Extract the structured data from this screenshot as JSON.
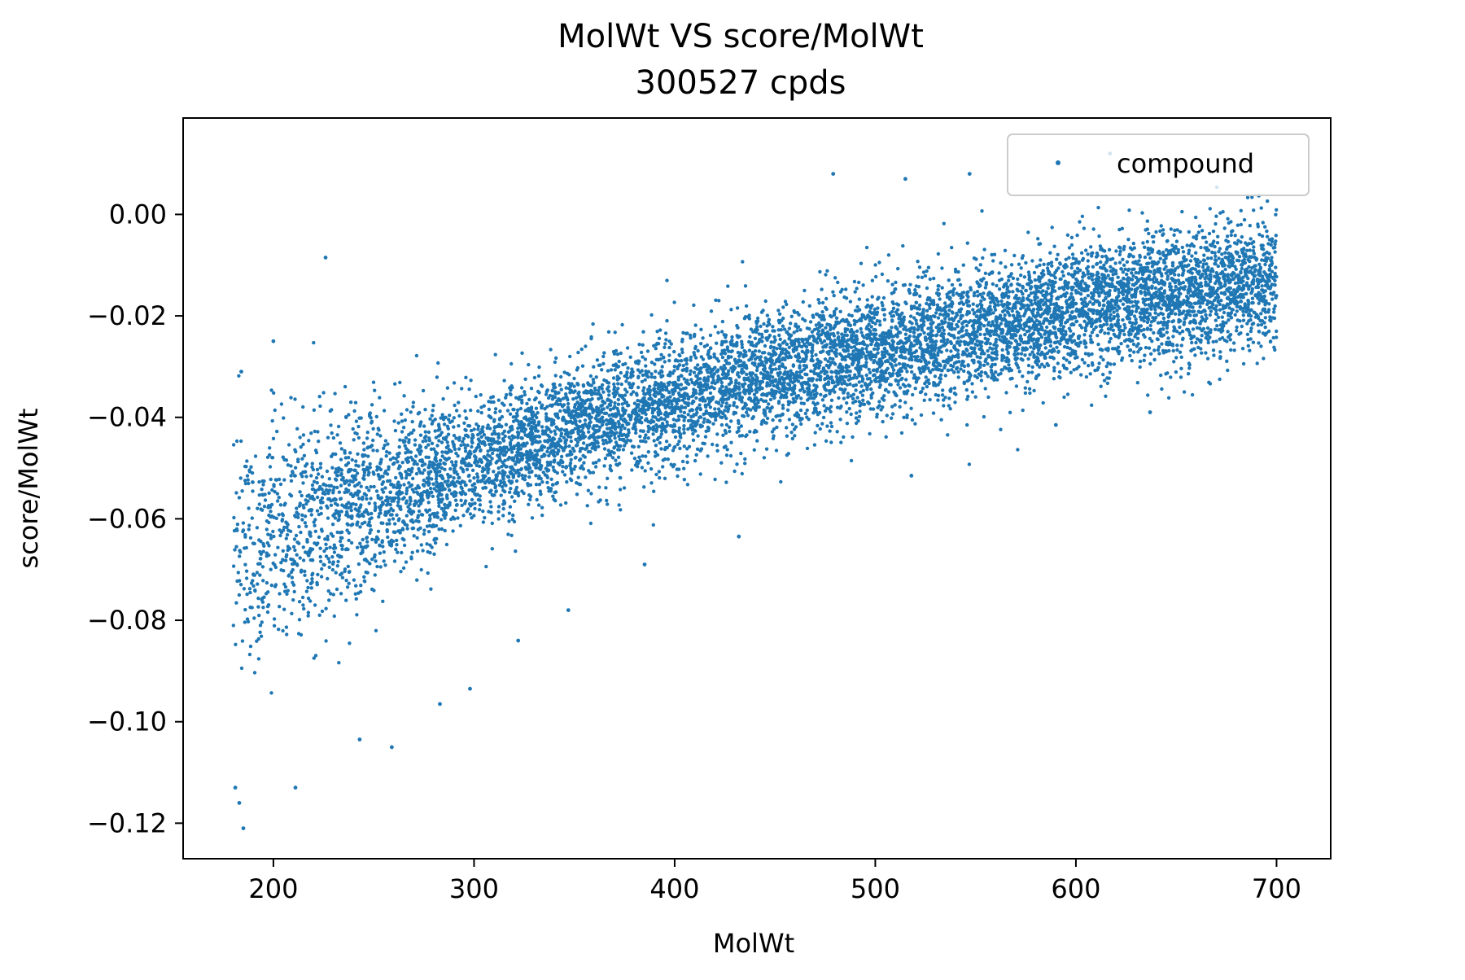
{
  "chart_data": {
    "type": "scatter",
    "title": "MolWt VS score/MolWt",
    "subtitle": "300527 cpds",
    "xlabel": "MolWt",
    "ylabel": "score/MolWt",
    "xlim": [
      155,
      727
    ],
    "ylim": [
      -0.127,
      0.019
    ],
    "xticks": [
      200,
      300,
      400,
      500,
      600,
      700
    ],
    "xtick_labels": [
      "200",
      "300",
      "400",
      "500",
      "600",
      "700"
    ],
    "yticks": [
      0.0,
      -0.02,
      -0.04,
      -0.06,
      -0.08,
      -0.1,
      -0.12
    ],
    "ytick_labels": [
      "0.00",
      "−0.02",
      "−0.04",
      "−0.06",
      "−0.08",
      "−0.10",
      "−0.12"
    ],
    "grid": false,
    "legend": {
      "position": "upper-right",
      "entries": [
        "compound"
      ]
    },
    "series": [
      {
        "name": "compound",
        "color": "#1f77b4",
        "x_range": [
          180,
          700
        ],
        "trend": {
          "x": [
            180,
            250,
            300,
            350,
            400,
            450,
            500,
            550,
            600,
            650,
            700
          ],
          "y": [
            -0.066,
            -0.056,
            -0.049,
            -0.042,
            -0.036,
            -0.031,
            -0.027,
            -0.023,
            -0.019,
            -0.016,
            -0.013
          ]
        },
        "outliers": [
          {
            "x": 185,
            "y": -0.121
          },
          {
            "x": 183,
            "y": -0.116
          },
          {
            "x": 181,
            "y": -0.113
          },
          {
            "x": 211,
            "y": -0.113
          },
          {
            "x": 259,
            "y": -0.105
          },
          {
            "x": 226,
            "y": -0.0085
          },
          {
            "x": 283,
            "y": -0.0965
          },
          {
            "x": 322,
            "y": -0.084
          },
          {
            "x": 347,
            "y": -0.078
          },
          {
            "x": 479,
            "y": 0.008
          },
          {
            "x": 547,
            "y": 0.008
          },
          {
            "x": 515,
            "y": 0.007
          },
          {
            "x": 617,
            "y": 0.012
          },
          {
            "x": 590,
            "y": -0.0415
          },
          {
            "x": 637,
            "y": -0.039
          },
          {
            "x": 518,
            "y": -0.0515
          },
          {
            "x": 432,
            "y": -0.0635
          },
          {
            "x": 385,
            "y": -0.069
          },
          {
            "x": 298,
            "y": -0.0935
          },
          {
            "x": 243,
            "y": -0.1035
          },
          {
            "x": 200,
            "y": -0.025
          },
          {
            "x": 184,
            "y": -0.031
          }
        ]
      }
    ]
  }
}
